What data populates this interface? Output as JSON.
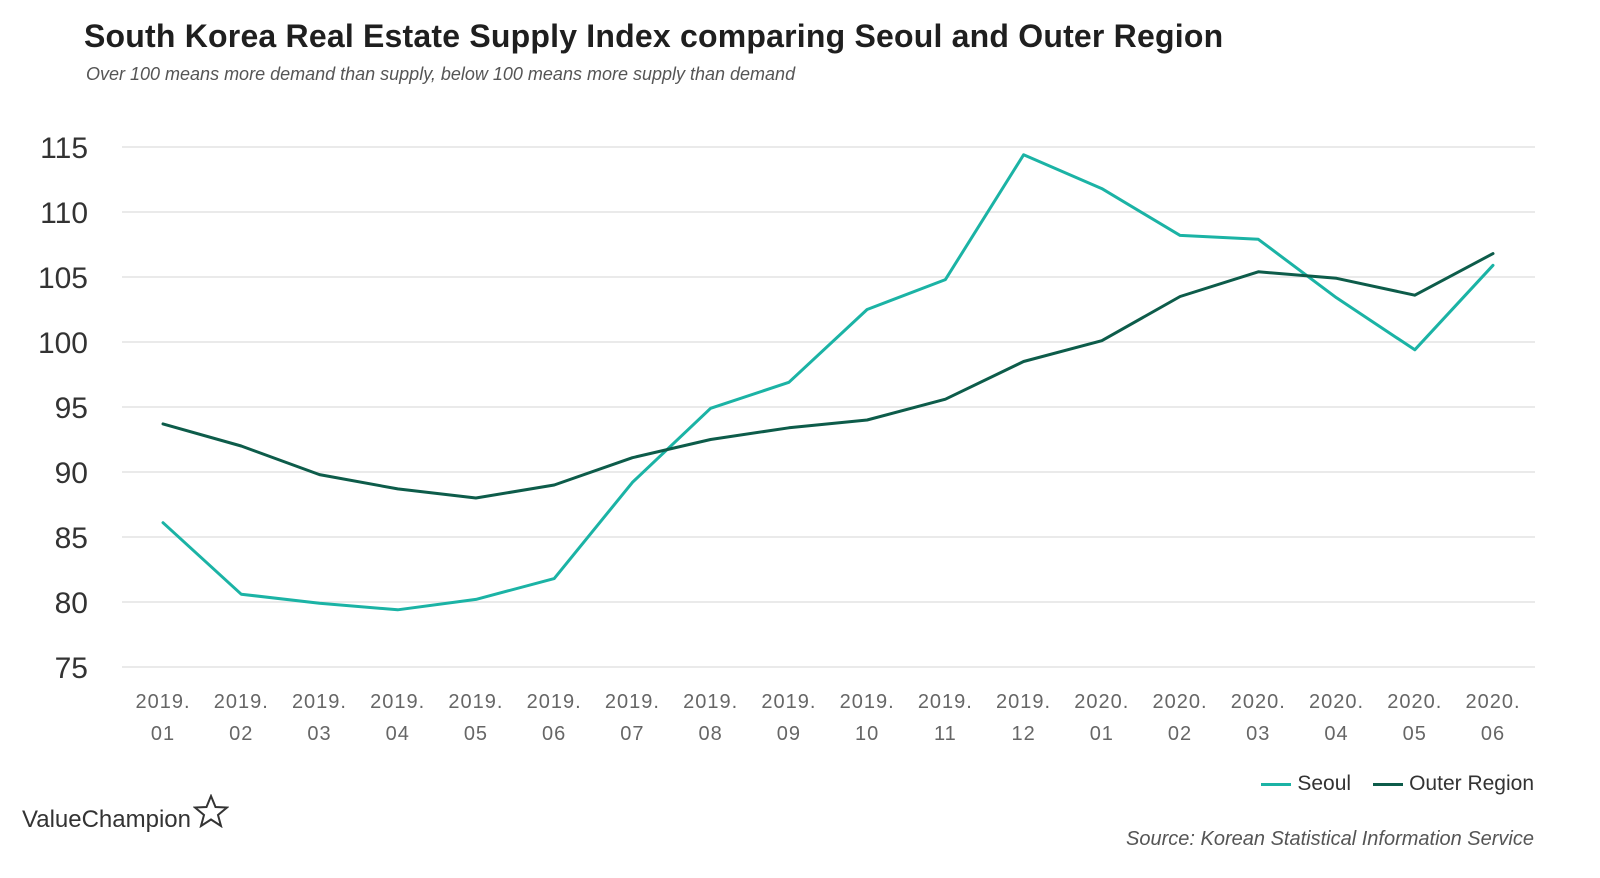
{
  "header": {
    "title": "South Korea Real Estate Supply Index comparing Seoul and Outer Region",
    "subtitle": "Over 100 means more demand than supply, below 100 means more supply than demand"
  },
  "footer": {
    "logo_text": "ValueChampion",
    "logo_icon": "star-outline-icon",
    "source": "Source: Korean Statistical Information Service"
  },
  "chart_data": {
    "type": "line",
    "title": "South Korea Real Estate Supply Index comparing Seoul and Outer Region",
    "subtitle": "Over 100 means more demand than supply, below 100 means more supply than demand",
    "xlabel": "",
    "ylabel": "",
    "categories": [
      [
        "2019.",
        "01"
      ],
      [
        "2019.",
        "02"
      ],
      [
        "2019.",
        "03"
      ],
      [
        "2019.",
        "04"
      ],
      [
        "2019.",
        "05"
      ],
      [
        "2019.",
        "06"
      ],
      [
        "2019.",
        "07"
      ],
      [
        "2019.",
        "08"
      ],
      [
        "2019.",
        "09"
      ],
      [
        "2019.",
        "10"
      ],
      [
        "2019.",
        "11"
      ],
      [
        "2019.",
        "12"
      ],
      [
        "2020.",
        "01"
      ],
      [
        "2020.",
        "02"
      ],
      [
        "2020.",
        "03"
      ],
      [
        "2020.",
        "04"
      ],
      [
        "2020.",
        "05"
      ],
      [
        "2020.",
        "06"
      ]
    ],
    "ylim": [
      75,
      115
    ],
    "yticks": [
      75,
      80,
      85,
      90,
      95,
      100,
      105,
      110,
      115
    ],
    "grid": true,
    "legend_position": "bottom-right",
    "series": [
      {
        "name": "Seoul",
        "color": "#1bb3a5",
        "values": [
          86.1,
          80.6,
          79.9,
          79.4,
          80.2,
          81.8,
          89.2,
          94.9,
          96.9,
          102.5,
          104.8,
          114.4,
          111.8,
          108.2,
          107.9,
          103.4,
          99.4,
          105.9
        ]
      },
      {
        "name": "Outer Region",
        "color": "#0d5c4a",
        "values": [
          93.7,
          92.0,
          89.8,
          88.7,
          88.0,
          89.0,
          91.1,
          92.5,
          93.4,
          94.0,
          95.6,
          98.5,
          100.1,
          103.5,
          105.4,
          104.9,
          103.6,
          106.8
        ]
      }
    ]
  }
}
